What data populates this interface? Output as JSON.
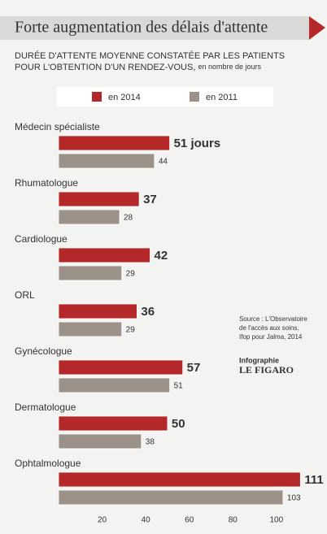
{
  "chart_data": {
    "type": "hbar",
    "title": "Forte augmentation des délais d'attente",
    "subtitle": [
      "DURÉE D'ATTENTE MOYENNE CONSTATÉE PAR LES PATIENTS",
      "POUR L'OBTENTION D'UN RENDEZ-VOUS,"
    ],
    "unit": "en nombre de jours",
    "categories": [
      "Médecin spécialiste",
      "Rhumatologue",
      "Cardiologue",
      "ORL",
      "Gynécologue",
      "Dermatologue",
      "Ophtalmologue"
    ],
    "series": [
      {
        "name": "en 2014",
        "color": "#b5282a",
        "values": [
          51,
          37,
          42,
          36,
          57,
          50,
          111
        ],
        "value_labels": [
          "51 jours",
          "37",
          "42",
          "36",
          "57",
          "50",
          "111"
        ]
      },
      {
        "name": "en 2011",
        "color": "#9c928a",
        "values": [
          44,
          28,
          29,
          29,
          51,
          38,
          103
        ]
      }
    ],
    "xlim": [
      0,
      112
    ],
    "xticks": [
      20,
      40,
      60,
      80,
      100
    ],
    "grid": false,
    "legend": "top",
    "source": [
      "Source : L'Observatoire",
      "de l'accès aux soins,",
      "Ifop pour Jalma, 2014"
    ],
    "credit": [
      "Infographie",
      "LE FIGARO"
    ]
  }
}
